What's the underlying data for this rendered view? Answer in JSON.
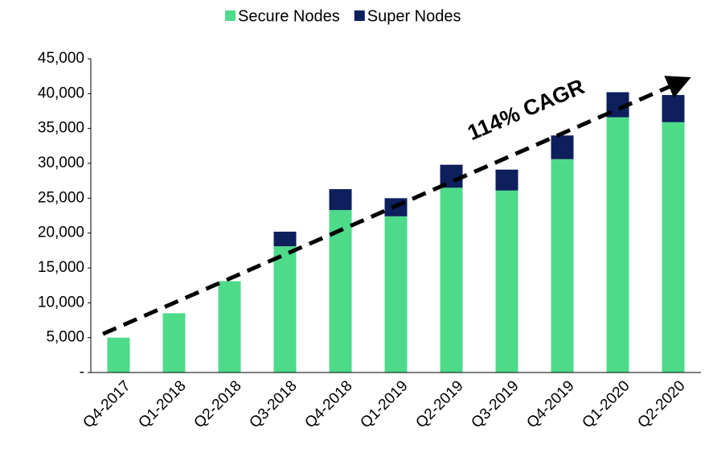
{
  "chart_data": {
    "type": "stacked_bar",
    "categories": [
      "Q4-2017",
      "Q1-2018",
      "Q2-2018",
      "Q3-2018",
      "Q4-2018",
      "Q1-2019",
      "Q2-2019",
      "Q3-2019",
      "Q4-2019",
      "Q1-2020",
      "Q2-2020"
    ],
    "series": [
      {
        "name": "Secure Nodes",
        "color": "#4ddb8a",
        "values": [
          5000,
          8500,
          13100,
          18100,
          23300,
          22400,
          26500,
          26100,
          30600,
          36600,
          35900
        ]
      },
      {
        "name": "Super Nodes",
        "color": "#0d1f5c",
        "values": [
          0,
          0,
          0,
          2100,
          3000,
          2600,
          3300,
          3000,
          3400,
          3600,
          3900
        ]
      }
    ],
    "ylim": [
      0,
      45000
    ],
    "yticks": [
      {
        "value": 0,
        "label": "-"
      },
      {
        "value": 5000,
        "label": "5,000"
      },
      {
        "value": 10000,
        "label": "10,000"
      },
      {
        "value": 15000,
        "label": "15,000"
      },
      {
        "value": 20000,
        "label": "20,000"
      },
      {
        "value": 25000,
        "label": "25,000"
      },
      {
        "value": 30000,
        "label": "30,000"
      },
      {
        "value": 35000,
        "label": "35,000"
      },
      {
        "value": 40000,
        "label": "40,000"
      },
      {
        "value": 45000,
        "label": "45,000"
      }
    ],
    "annotation": "114% CAGR",
    "legend": "top"
  }
}
